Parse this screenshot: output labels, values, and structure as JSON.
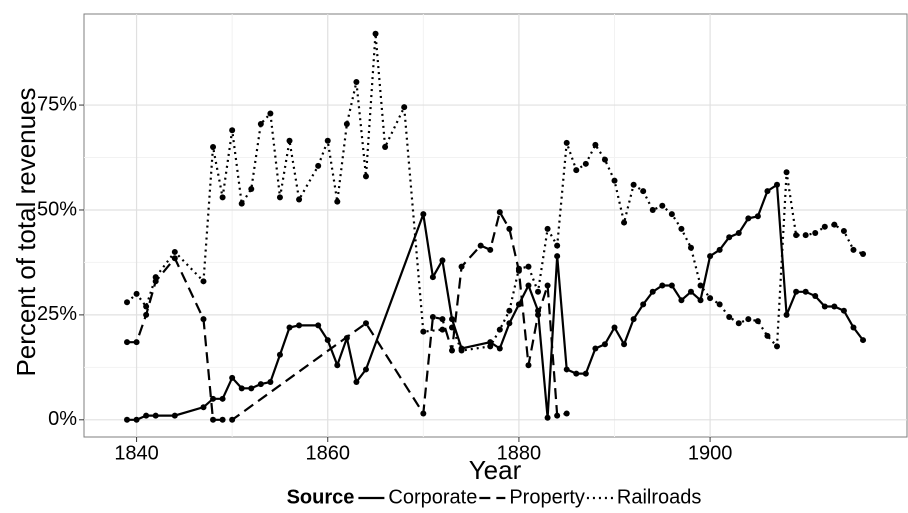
{
  "chart_data": {
    "type": "line",
    "x_label": "Year",
    "y_label": "Percent of total revenues",
    "legend_title": "Source",
    "legend_position": "bottom",
    "grid": true,
    "xlim": [
      1834.5,
      1920.6
    ],
    "ylim": [
      -4.1,
      96.7
    ],
    "xticks": [
      1840,
      1860,
      1880,
      1900
    ],
    "yticks": [
      {
        "value": 0,
        "label": "0%"
      },
      {
        "value": 25,
        "label": "25%"
      },
      {
        "value": 50,
        "label": "50%"
      },
      {
        "value": 75,
        "label": "75%"
      }
    ],
    "series": [
      {
        "name": "Corporate",
        "color": "#000000",
        "dash": "solid",
        "x": [
          1839,
          1840,
          1841,
          1842,
          1844,
          1847,
          1848,
          1849,
          1850,
          1851,
          1852,
          1853,
          1854,
          1855,
          1856,
          1857,
          1859,
          1860,
          1861,
          1862,
          1863,
          1864,
          1870,
          1871,
          1872,
          1873,
          1874,
          1877,
          1878,
          1879,
          1880,
          1881,
          1882,
          1883,
          1884,
          1885,
          1886,
          1887,
          1888,
          1889,
          1890,
          1891,
          1892,
          1893,
          1894,
          1895,
          1896,
          1897,
          1898,
          1899,
          1900,
          1901,
          1902,
          1903,
          1904,
          1905,
          1906,
          1907,
          1908,
          1909,
          1910,
          1911,
          1912,
          1913,
          1914,
          1915,
          1916
        ],
        "values": [
          0,
          0,
          1,
          1,
          1,
          3,
          5,
          5,
          10,
          7.5,
          7.5,
          8.5,
          9,
          15.5,
          22,
          22.5,
          22.5,
          19,
          13,
          19.5,
          9,
          12,
          49,
          34,
          38,
          24,
          17,
          18.5,
          17,
          23,
          27.5,
          32,
          26,
          0.5,
          39,
          12,
          11,
          11,
          17,
          18,
          22,
          18,
          24,
          27.5,
          30.5,
          32,
          32,
          28.5,
          30.5,
          28.5,
          39,
          40.5,
          43.5,
          44.5,
          48,
          48.5,
          54.5,
          56,
          25,
          30.5,
          30.5,
          29.5,
          27,
          27,
          26,
          22,
          19
        ]
      },
      {
        "name": "Property",
        "color": "#000000",
        "dash": "dashed",
        "x": [
          1839,
          1840,
          1841,
          1842,
          1844,
          1847,
          1848,
          1849,
          1850,
          1864,
          1870,
          1871,
          1872,
          1873,
          1874,
          1876,
          1877,
          1878,
          1879,
          1880,
          1881,
          1882,
          1883,
          1884,
          1885
        ],
        "values": [
          18.5,
          18.5,
          25,
          33,
          38.5,
          24,
          0,
          0,
          0,
          23,
          1.5,
          24.5,
          24,
          16.5,
          36.5,
          41.5,
          40.5,
          49.5,
          45.5,
          35.5,
          13,
          25,
          32,
          1,
          1.5
        ]
      },
      {
        "name": "Railroads",
        "color": "#000000",
        "dash": "dotted",
        "x": [
          1839,
          1840,
          1841,
          1842,
          1844,
          1847,
          1848,
          1849,
          1850,
          1851,
          1852,
          1853,
          1854,
          1855,
          1856,
          1857,
          1859,
          1860,
          1861,
          1862,
          1863,
          1864,
          1865,
          1866,
          1868,
          1870,
          1872,
          1873,
          1874,
          1877,
          1878,
          1879,
          1880,
          1881,
          1882,
          1883,
          1884,
          1885,
          1886,
          1887,
          1888,
          1889,
          1890,
          1891,
          1892,
          1893,
          1894,
          1895,
          1896,
          1897,
          1898,
          1899,
          1900,
          1901,
          1902,
          1903,
          1904,
          1905,
          1906,
          1907,
          1908,
          1909,
          1910,
          1911,
          1912,
          1913,
          1914,
          1915,
          1916
        ],
        "values": [
          28,
          30,
          27,
          34,
          40,
          33,
          65,
          53,
          69,
          51.5,
          55,
          70.5,
          73,
          53,
          66.5,
          52.5,
          60.5,
          66.5,
          52,
          70.5,
          80.5,
          58,
          92,
          65,
          74.5,
          21,
          21.5,
          22,
          16.5,
          17.5,
          21.5,
          26,
          36,
          36.5,
          30.5,
          45.5,
          41.5,
          66,
          59.5,
          61,
          65.5,
          62,
          57,
          47,
          56,
          54.5,
          50,
          51,
          49,
          45.5,
          41,
          32,
          29,
          27.5,
          24.5,
          23,
          24,
          23.5,
          20,
          17.5,
          59,
          44,
          44,
          44.5,
          46,
          46.5,
          45,
          40.5,
          39.5
        ]
      }
    ]
  }
}
